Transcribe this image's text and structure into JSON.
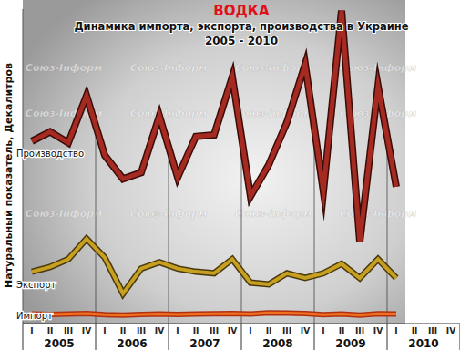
{
  "chart_data": {
    "type": "line",
    "title": "ВОДКА",
    "subtitle": "Динамика импорта, экспорта, производства в Украине",
    "period": "2005 - 2010",
    "y_label": "Натуральный показатель, Декалитров",
    "watermark": "Союз-Інформ",
    "categories": [
      "I",
      "II",
      "III",
      "IV",
      "I",
      "II",
      "III",
      "IV",
      "I",
      "II",
      "III",
      "IV",
      "I",
      "II",
      "III",
      "IV",
      "I",
      "II",
      "III",
      "IV",
      "I",
      "II",
      "III",
      "IV"
    ],
    "years": [
      "2005",
      "2006",
      "2007",
      "2008",
      "2009",
      "2010"
    ],
    "series": [
      {
        "name": "Производство",
        "color": "#a52a22",
        "values": [
          5800000,
          6100000,
          5750000,
          7250000,
          5350000,
          4600000,
          4800000,
          6600000,
          4650000,
          5950000,
          6000000,
          7850000,
          4050000,
          5050000,
          6400000,
          8250000,
          4200000,
          9950000,
          2600000,
          7550000,
          4350000,
          null,
          null,
          null
        ]
      },
      {
        "name": "Экспорт",
        "color": "#c8a020",
        "values": [
          1650000,
          1800000,
          2050000,
          2700000,
          2100000,
          950000,
          1750000,
          1950000,
          1750000,
          1650000,
          1600000,
          2050000,
          1300000,
          1250000,
          1600000,
          1450000,
          1600000,
          1900000,
          1450000,
          2050000,
          1450000,
          null,
          null,
          null
        ]
      },
      {
        "name": "Импорт",
        "color": "#f07020",
        "values": [
          300000,
          290000,
          300000,
          320000,
          280000,
          270000,
          290000,
          300000,
          290000,
          300000,
          310000,
          320000,
          300000,
          340000,
          330000,
          320000,
          280000,
          300000,
          270000,
          310000,
          300000,
          null,
          null,
          null
        ]
      }
    ],
    "ylim": [
      0,
      10000000
    ],
    "yticks": [],
    "tick_labels": "x",
    "grid": false
  }
}
